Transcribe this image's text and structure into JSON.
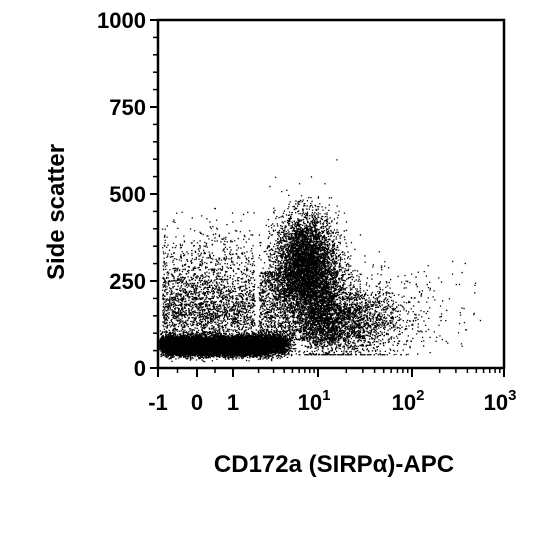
{
  "chart_data": {
    "type": "scatter",
    "title": "",
    "xlabel": "CD172a (SIRPα)-APC",
    "ylabel": "Side scatter",
    "x_scale": "biexponential (linear near 0, log above 1)",
    "xlim": [
      -1,
      1000
    ],
    "ylim": [
      0,
      1000
    ],
    "y_ticks": [
      {
        "value": 0,
        "label": "0"
      },
      {
        "value": 250,
        "label": "250"
      },
      {
        "value": 500,
        "label": "500"
      },
      {
        "value": 750,
        "label": "750"
      },
      {
        "value": 1000,
        "label": "1000"
      }
    ],
    "x_ticks": [
      {
        "value": -1,
        "label": "-1"
      },
      {
        "value": 0,
        "label": "0"
      },
      {
        "value": 1,
        "label": "1"
      },
      {
        "value": 10,
        "base": "10",
        "exp": "1"
      },
      {
        "value": 100,
        "base": "10",
        "exp": "2"
      },
      {
        "value": 1000,
        "base": "10",
        "exp": "3"
      }
    ],
    "grid": false,
    "legend": "none",
    "point_color": "#000000",
    "populations": [
      {
        "x_center": 0.5,
        "y_center": 65,
        "x_spread_decades": 0.9,
        "y_spread": 18,
        "density": "very high"
      },
      {
        "x_center": 7,
        "y_center": 300,
        "x_spread_decades": 0.25,
        "y_spread": 70,
        "density": "high"
      },
      {
        "x_center": 20,
        "y_center": 150,
        "x_spread_decades": 0.4,
        "y_spread": 50,
        "density": "medium"
      }
    ]
  }
}
